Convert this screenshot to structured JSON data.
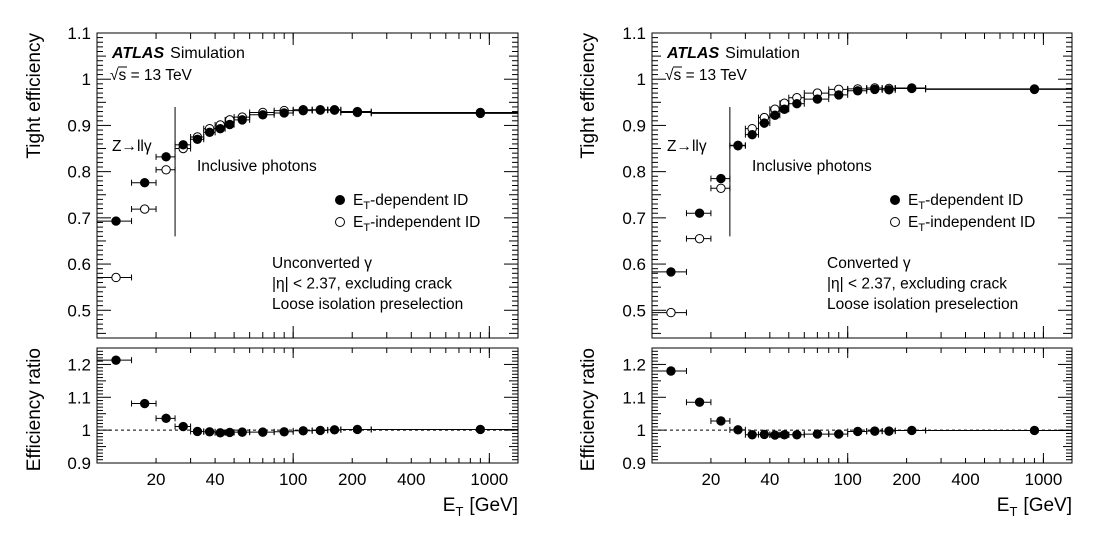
{
  "chart_data": [
    {
      "type": "scatter",
      "panel": "unconverted",
      "experiment_label": "ATLAS",
      "experiment_sublabel": "Simulation",
      "energy_label": "√s = 13 TeV",
      "region_labels": {
        "low": "Z→llγ",
        "high": "Inclusive photons"
      },
      "boundary_x": 25,
      "annotation_lines": [
        "Unconverted γ",
        "|η| < 2.37, excluding crack",
        "Loose isolation preselection"
      ],
      "xlabel_main": "E",
      "xlabel_sub": "T",
      "xlabel_unit": "[GeV]",
      "xscale": "log",
      "xlim": [
        10,
        1400
      ],
      "xticks": [
        20,
        40,
        100,
        200,
        400,
        1000
      ],
      "top": {
        "ylabel": "Tight efficiency",
        "ylim": [
          0.44,
          1.1
        ],
        "yticks": [
          "0.5",
          "0.6",
          "0.7",
          "0.8",
          "0.9",
          "1",
          "1.1"
        ],
        "series": [
          {
            "name": "E",
            "name_sub": "T",
            "name_rest": "-dependent ID",
            "marker": "filled",
            "points": [
              {
                "x": 12.5,
                "xlo": 10,
                "xhi": 15,
                "y": 0.693
              },
              {
                "x": 17.5,
                "xlo": 15,
                "xhi": 20,
                "y": 0.776
              },
              {
                "x": 22.5,
                "xlo": 20,
                "xhi": 25,
                "y": 0.832
              },
              {
                "x": 27.5,
                "xlo": 25,
                "xhi": 30,
                "y": 0.858
              },
              {
                "x": 32.5,
                "xlo": 30,
                "xhi": 35,
                "y": 0.87
              },
              {
                "x": 37.5,
                "xlo": 35,
                "xhi": 40,
                "y": 0.885
              },
              {
                "x": 42.5,
                "xlo": 40,
                "xhi": 45,
                "y": 0.893
              },
              {
                "x": 47.5,
                "xlo": 45,
                "xhi": 50,
                "y": 0.902
              },
              {
                "x": 55,
                "xlo": 50,
                "xhi": 60,
                "y": 0.912
              },
              {
                "x": 70,
                "xlo": 60,
                "xhi": 80,
                "y": 0.923
              },
              {
                "x": 90,
                "xlo": 80,
                "xhi": 100,
                "y": 0.927
              },
              {
                "x": 112.5,
                "xlo": 100,
                "xhi": 125,
                "y": 0.932
              },
              {
                "x": 137.5,
                "xlo": 125,
                "xhi": 150,
                "y": 0.933
              },
              {
                "x": 162.5,
                "xlo": 150,
                "xhi": 175,
                "y": 0.934
              },
              {
                "x": 212.5,
                "xlo": 175,
                "xhi": 250,
                "y": 0.93
              },
              {
                "x": 900,
                "xlo": 250,
                "xhi": 1400,
                "y": 0.928
              }
            ]
          },
          {
            "name": "E",
            "name_sub": "T",
            "name_rest": "-independent ID",
            "marker": "open",
            "points": [
              {
                "x": 12.5,
                "xlo": 10,
                "xhi": 15,
                "y": 0.571
              },
              {
                "x": 17.5,
                "xlo": 15,
                "xhi": 20,
                "y": 0.719
              },
              {
                "x": 22.5,
                "xlo": 20,
                "xhi": 25,
                "y": 0.804
              },
              {
                "x": 27.5,
                "xlo": 25,
                "xhi": 30,
                "y": 0.85
              },
              {
                "x": 32.5,
                "xlo": 30,
                "xhi": 35,
                "y": 0.875
              },
              {
                "x": 37.5,
                "xlo": 35,
                "xhi": 40,
                "y": 0.893
              },
              {
                "x": 42.5,
                "xlo": 40,
                "xhi": 45,
                "y": 0.901
              },
              {
                "x": 47.5,
                "xlo": 45,
                "xhi": 50,
                "y": 0.912
              },
              {
                "x": 55,
                "xlo": 50,
                "xhi": 60,
                "y": 0.918
              },
              {
                "x": 70,
                "xlo": 60,
                "xhi": 80,
                "y": 0.928
              },
              {
                "x": 90,
                "xlo": 80,
                "xhi": 100,
                "y": 0.932
              },
              {
                "x": 112.5,
                "xlo": 100,
                "xhi": 125,
                "y": 0.934
              },
              {
                "x": 137.5,
                "xlo": 125,
                "xhi": 150,
                "y": 0.934
              },
              {
                "x": 162.5,
                "xlo": 150,
                "xhi": 175,
                "y": 0.933
              },
              {
                "x": 212.5,
                "xlo": 175,
                "xhi": 250,
                "y": 0.928
              },
              {
                "x": 900,
                "xlo": 250,
                "xhi": 1400,
                "y": 0.926
              }
            ]
          }
        ]
      },
      "bottom": {
        "ylabel": "Efficiency ratio",
        "ylim": [
          0.9,
          1.25
        ],
        "yticks": [
          "0.9",
          "1",
          "1.1",
          "1.2"
        ],
        "reference_line": 1.0,
        "points": [
          {
            "x": 12.5,
            "xlo": 10,
            "xhi": 15,
            "y": 1.213
          },
          {
            "x": 17.5,
            "xlo": 15,
            "xhi": 20,
            "y": 1.081
          },
          {
            "x": 22.5,
            "xlo": 20,
            "xhi": 25,
            "y": 1.036
          },
          {
            "x": 27.5,
            "xlo": 25,
            "xhi": 30,
            "y": 1.011
          },
          {
            "x": 32.5,
            "xlo": 30,
            "xhi": 35,
            "y": 0.996
          },
          {
            "x": 37.5,
            "xlo": 35,
            "xhi": 40,
            "y": 0.995
          },
          {
            "x": 42.5,
            "xlo": 40,
            "xhi": 45,
            "y": 0.992
          },
          {
            "x": 47.5,
            "xlo": 45,
            "xhi": 50,
            "y": 0.993
          },
          {
            "x": 55,
            "xlo": 50,
            "xhi": 60,
            "y": 0.994
          },
          {
            "x": 70,
            "xlo": 60,
            "xhi": 80,
            "y": 0.994
          },
          {
            "x": 90,
            "xlo": 80,
            "xhi": 100,
            "y": 0.995
          },
          {
            "x": 112.5,
            "xlo": 100,
            "xhi": 125,
            "y": 0.998
          },
          {
            "x": 137.5,
            "xlo": 125,
            "xhi": 150,
            "y": 0.999
          },
          {
            "x": 162.5,
            "xlo": 150,
            "xhi": 175,
            "y": 1.001
          },
          {
            "x": 212.5,
            "xlo": 175,
            "xhi": 250,
            "y": 1.002
          },
          {
            "x": 900,
            "xlo": 250,
            "xhi": 1400,
            "y": 1.002
          }
        ]
      }
    },
    {
      "type": "scatter",
      "panel": "converted",
      "experiment_label": "ATLAS",
      "experiment_sublabel": "Simulation",
      "energy_label": "√s = 13 TeV",
      "region_labels": {
        "low": "Z→llγ",
        "high": "Inclusive photons"
      },
      "boundary_x": 25,
      "annotation_lines": [
        "Converted γ",
        "|η| < 2.37, excluding crack",
        "Loose isolation preselection"
      ],
      "xlabel_main": "E",
      "xlabel_sub": "T",
      "xlabel_unit": "[GeV]",
      "xscale": "log",
      "xlim": [
        10,
        1400
      ],
      "xticks": [
        20,
        40,
        100,
        200,
        400,
        1000
      ],
      "top": {
        "ylabel": "Tight efficiency",
        "ylim": [
          0.44,
          1.1
        ],
        "yticks": [
          "0.5",
          "0.6",
          "0.7",
          "0.8",
          "0.9",
          "1",
          "1.1"
        ],
        "series": [
          {
            "name": "E",
            "name_sub": "T",
            "name_rest": "-dependent ID",
            "marker": "filled",
            "points": [
              {
                "x": 12.5,
                "xlo": 10,
                "xhi": 15,
                "y": 0.583
              },
              {
                "x": 17.5,
                "xlo": 15,
                "xhi": 20,
                "y": 0.71
              },
              {
                "x": 22.5,
                "xlo": 20,
                "xhi": 25,
                "y": 0.785
              },
              {
                "x": 27.5,
                "xlo": 25,
                "xhi": 30,
                "y": 0.857
              },
              {
                "x": 32.5,
                "xlo": 30,
                "xhi": 35,
                "y": 0.88
              },
              {
                "x": 37.5,
                "xlo": 35,
                "xhi": 40,
                "y": 0.905
              },
              {
                "x": 42.5,
                "xlo": 40,
                "xhi": 45,
                "y": 0.922
              },
              {
                "x": 47.5,
                "xlo": 45,
                "xhi": 50,
                "y": 0.935
              },
              {
                "x": 55,
                "xlo": 50,
                "xhi": 60,
                "y": 0.947
              },
              {
                "x": 70,
                "xlo": 60,
                "xhi": 80,
                "y": 0.957
              },
              {
                "x": 90,
                "xlo": 80,
                "xhi": 100,
                "y": 0.966
              },
              {
                "x": 112.5,
                "xlo": 100,
                "xhi": 125,
                "y": 0.975
              },
              {
                "x": 137.5,
                "xlo": 125,
                "xhi": 150,
                "y": 0.978
              },
              {
                "x": 162.5,
                "xlo": 150,
                "xhi": 175,
                "y": 0.977
              },
              {
                "x": 212.5,
                "xlo": 175,
                "xhi": 250,
                "y": 0.98
              },
              {
                "x": 900,
                "xlo": 250,
                "xhi": 1400,
                "y": 0.978
              }
            ]
          },
          {
            "name": "E",
            "name_sub": "T",
            "name_rest": "-independent ID",
            "marker": "open",
            "points": [
              {
                "x": 12.5,
                "xlo": 10,
                "xhi": 15,
                "y": 0.495
              },
              {
                "x": 17.5,
                "xlo": 15,
                "xhi": 20,
                "y": 0.655
              },
              {
                "x": 22.5,
                "xlo": 20,
                "xhi": 25,
                "y": 0.764
              },
              {
                "x": 27.5,
                "xlo": 25,
                "xhi": 30,
                "y": 0.856
              },
              {
                "x": 32.5,
                "xlo": 30,
                "xhi": 35,
                "y": 0.893
              },
              {
                "x": 37.5,
                "xlo": 35,
                "xhi": 40,
                "y": 0.917
              },
              {
                "x": 42.5,
                "xlo": 40,
                "xhi": 45,
                "y": 0.935
              },
              {
                "x": 47.5,
                "xlo": 45,
                "xhi": 50,
                "y": 0.948
              },
              {
                "x": 55,
                "xlo": 50,
                "xhi": 60,
                "y": 0.96
              },
              {
                "x": 70,
                "xlo": 60,
                "xhi": 80,
                "y": 0.97
              },
              {
                "x": 90,
                "xlo": 80,
                "xhi": 100,
                "y": 0.978
              },
              {
                "x": 112.5,
                "xlo": 100,
                "xhi": 125,
                "y": 0.979
              },
              {
                "x": 137.5,
                "xlo": 125,
                "xhi": 150,
                "y": 0.981
              },
              {
                "x": 162.5,
                "xlo": 150,
                "xhi": 175,
                "y": 0.98
              },
              {
                "x": 212.5,
                "xlo": 175,
                "xhi": 250,
                "y": 0.981
              },
              {
                "x": 900,
                "xlo": 250,
                "xhi": 1400,
                "y": 0.979
              }
            ]
          }
        ]
      },
      "bottom": {
        "ylabel": "Efficiency ratio",
        "ylim": [
          0.9,
          1.25
        ],
        "yticks": [
          "0.9",
          "1",
          "1.1",
          "1.2"
        ],
        "reference_line": 1.0,
        "points": [
          {
            "x": 12.5,
            "xlo": 10,
            "xhi": 15,
            "y": 1.18
          },
          {
            "x": 17.5,
            "xlo": 15,
            "xhi": 20,
            "y": 1.085
          },
          {
            "x": 22.5,
            "xlo": 20,
            "xhi": 25,
            "y": 1.028
          },
          {
            "x": 27.5,
            "xlo": 25,
            "xhi": 30,
            "y": 1.001
          },
          {
            "x": 32.5,
            "xlo": 30,
            "xhi": 35,
            "y": 0.986
          },
          {
            "x": 37.5,
            "xlo": 35,
            "xhi": 40,
            "y": 0.987
          },
          {
            "x": 42.5,
            "xlo": 40,
            "xhi": 45,
            "y": 0.985
          },
          {
            "x": 47.5,
            "xlo": 45,
            "xhi": 50,
            "y": 0.986
          },
          {
            "x": 55,
            "xlo": 50,
            "xhi": 60,
            "y": 0.986
          },
          {
            "x": 70,
            "xlo": 60,
            "xhi": 80,
            "y": 0.988
          },
          {
            "x": 90,
            "xlo": 80,
            "xhi": 100,
            "y": 0.988
          },
          {
            "x": 112.5,
            "xlo": 100,
            "xhi": 125,
            "y": 0.996
          },
          {
            "x": 137.5,
            "xlo": 125,
            "xhi": 150,
            "y": 0.997
          },
          {
            "x": 162.5,
            "xlo": 150,
            "xhi": 175,
            "y": 0.997
          },
          {
            "x": 212.5,
            "xlo": 175,
            "xhi": 250,
            "y": 0.999
          },
          {
            "x": 900,
            "xlo": 250,
            "xhi": 1400,
            "y": 0.999
          }
        ]
      }
    }
  ]
}
